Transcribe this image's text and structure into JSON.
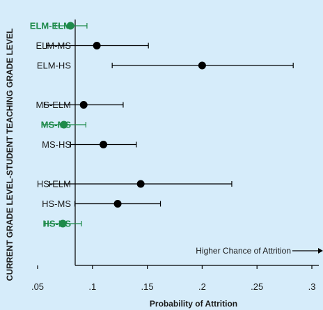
{
  "chart_data": {
    "type": "scatter",
    "subtype": "dot-and-whisker",
    "xlabel": "Probability of Attrition",
    "ylabel": "CURRENT GRADE LEVEL-STUDENT TEACHING GRADE LEVEL",
    "xlim": [
      0.04,
      0.31
    ],
    "xticks": [
      {
        "value": 0.05,
        "label": ".05"
      },
      {
        "value": 0.1,
        "label": ".1"
      },
      {
        "value": 0.15,
        "label": ".15"
      },
      {
        "value": 0.2,
        "label": ".2"
      },
      {
        "value": 0.25,
        "label": ".25"
      },
      {
        "value": 0.3,
        "label": ".3"
      }
    ],
    "groups": [
      [
        {
          "label": "ELM-ELM",
          "estimate": 0.08,
          "low": 0.066,
          "high": 0.095,
          "highlight": true
        },
        {
          "label": "ELM-MS",
          "estimate": 0.104,
          "low": 0.058,
          "high": 0.151,
          "highlight": false
        },
        {
          "label": "ELM-HS",
          "estimate": 0.2,
          "low": 0.118,
          "high": 0.283,
          "highlight": false
        }
      ],
      [
        {
          "label": "MS-ELM",
          "estimate": 0.092,
          "low": 0.056,
          "high": 0.128,
          "highlight": false
        },
        {
          "label": "MS-MS",
          "estimate": 0.074,
          "low": 0.054,
          "high": 0.094,
          "highlight": true
        },
        {
          "label": "MS-HS",
          "estimate": 0.11,
          "low": 0.08,
          "high": 0.14,
          "highlight": false
        }
      ],
      [
        {
          "label": "HS-ELM",
          "estimate": 0.144,
          "low": 0.061,
          "high": 0.227,
          "highlight": false
        },
        {
          "label": "HS-MS",
          "estimate": 0.123,
          "low": 0.084,
          "high": 0.162,
          "highlight": false
        },
        {
          "label": "HS-HS",
          "estimate": 0.073,
          "low": 0.057,
          "high": 0.09,
          "highlight": true
        }
      ]
    ],
    "annotation": "Higher Chance of Attrition",
    "colors": {
      "background": "#d6ecfa",
      "highlight": "#1e8a4a",
      "default": "#000000",
      "axis": "#000000"
    },
    "grid": false,
    "legend": "none"
  }
}
